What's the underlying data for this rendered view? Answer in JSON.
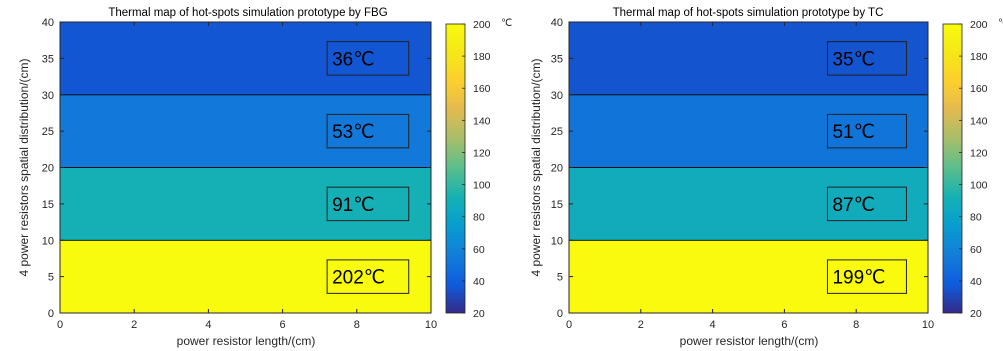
{
  "chart_data": [
    {
      "type": "heatmap",
      "title": "Thermal map of hot-spots simulation prototype by FBG",
      "xlabel": "power resistor length/(cm)",
      "ylabel": "4 power resistors spatial distribution/(cm)",
      "xlim": [
        0,
        10
      ],
      "ylim": [
        0,
        40
      ],
      "xticks": [
        0,
        2,
        4,
        6,
        8,
        10
      ],
      "yticks": [
        0,
        5,
        10,
        15,
        20,
        25,
        30,
        35,
        40
      ],
      "bands": [
        {
          "y_range": [
            0,
            10
          ],
          "value": 202,
          "label": "202℃"
        },
        {
          "y_range": [
            10,
            20
          ],
          "value": 91,
          "label": "91℃"
        },
        {
          "y_range": [
            20,
            30
          ],
          "value": 53,
          "label": "53℃"
        },
        {
          "y_range": [
            30,
            40
          ],
          "value": 36,
          "label": "36℃"
        }
      ],
      "colorbar": {
        "range": [
          20,
          200
        ],
        "ticks": [
          20,
          40,
          60,
          80,
          100,
          120,
          140,
          160,
          180,
          200
        ],
        "unit": "℃",
        "colormap": "parula"
      },
      "grid": false
    },
    {
      "type": "heatmap",
      "title": "Thermal map of hot-spots simulation prototype by TC",
      "xlabel": "power resistor length/(cm)",
      "ylabel": "4 power resistors spatial distribution/(cm)",
      "xlim": [
        0,
        10
      ],
      "ylim": [
        0,
        40
      ],
      "xticks": [
        0,
        2,
        4,
        6,
        8,
        10
      ],
      "yticks": [
        0,
        5,
        10,
        15,
        20,
        25,
        30,
        35,
        40
      ],
      "bands": [
        {
          "y_range": [
            0,
            10
          ],
          "value": 199,
          "label": "199℃"
        },
        {
          "y_range": [
            10,
            20
          ],
          "value": 87,
          "label": "87℃"
        },
        {
          "y_range": [
            20,
            30
          ],
          "value": 51,
          "label": "51℃"
        },
        {
          "y_range": [
            30,
            40
          ],
          "value": 35,
          "label": "35℃"
        }
      ],
      "colorbar": {
        "range": [
          20,
          200
        ],
        "ticks": [
          20,
          40,
          60,
          80,
          100,
          120,
          140,
          160,
          180,
          200
        ],
        "unit": "℃",
        "colormap": "parula"
      },
      "grid": false
    }
  ]
}
